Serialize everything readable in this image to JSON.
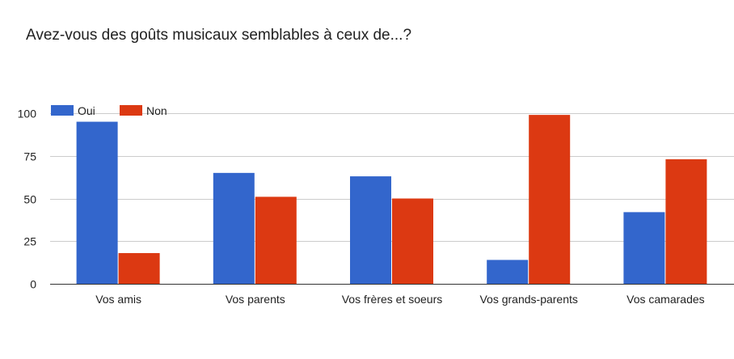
{
  "chart_data": {
    "type": "bar",
    "title": "Avez-vous des goûts musicaux semblables à ceux de...?",
    "categories": [
      "Vos amis",
      "Vos parents",
      "Vos frères et soeurs",
      "Vos grands-parents",
      "Vos camarades"
    ],
    "series": [
      {
        "name": "Oui",
        "color": "#3366cc",
        "values": [
          95,
          65,
          63,
          14,
          42
        ]
      },
      {
        "name": "Non",
        "color": "#dc3912",
        "values": [
          18,
          51,
          50,
          99,
          73
        ]
      }
    ],
    "yticks": [
      0,
      25,
      50,
      75,
      100
    ],
    "ylim": [
      0,
      100
    ],
    "grid": true,
    "legend_position": "top-left"
  }
}
